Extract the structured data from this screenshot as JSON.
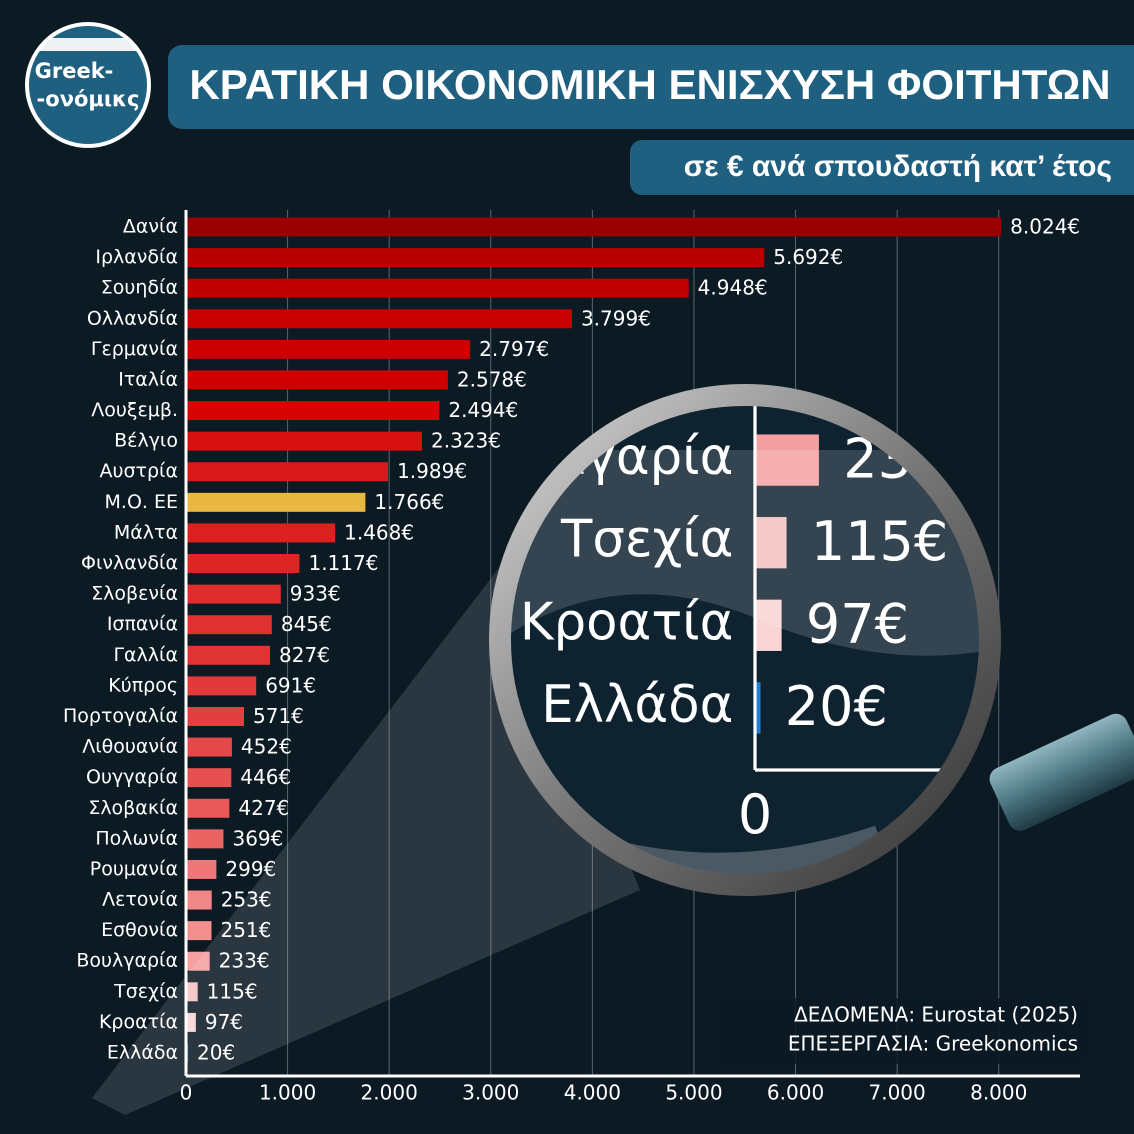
{
  "logo": [
    "Greek-",
    "-ονόμικς"
  ],
  "source": "ΔΕΔΟΜΕΝΑ: Eurostat (2025)",
  "credit": "ΕΠΕΞΕΡΓΑΣΙΑ: Greekonomics",
  "chart_data": {
    "type": "barh",
    "title": "ΚΡΑΤΙΚΗ ΟΙΚΟΝΟΜΙΚΗ ΕΝΙΣΧΥΣΗ ΦΟΙΤΗΤΩΝ",
    "subtitle": "σε € ανά σπουδαστή κατ’ έτος",
    "categories": [
      "Δανία",
      "Ιρλανδία",
      "Σουηδία",
      "Ολλανδία",
      "Γερμανία",
      "Ιταλία",
      "Λουξεμβ.",
      "Βέλγιο",
      "Αυστρία",
      "Μ.Ο. ΕΕ",
      "Μάλτα",
      "Φινλανδία",
      "Σλοβενία",
      "Ισπανία",
      "Γαλλία",
      "Κύπρος",
      "Πορτογαλία",
      "Λιθουανία",
      "Ουγγαρία",
      "Σλοβακία",
      "Πολωνία",
      "Ρουμανία",
      "Λετονία",
      "Εσθονία",
      "Βουλγαρία",
      "Τσεχία",
      "Κροατία",
      "Ελλάδα"
    ],
    "values": [
      8024,
      5692,
      4948,
      3799,
      2797,
      2578,
      2494,
      2323,
      1989,
      1766,
      1468,
      1117,
      933,
      845,
      827,
      691,
      571,
      452,
      446,
      427,
      369,
      299,
      253,
      251,
      233,
      115,
      97,
      20
    ],
    "value_labels": [
      "8.024€",
      "5.692€",
      "4.948€",
      "3.799€",
      "2.797€",
      "2.578€",
      "2.494€",
      "2.323€",
      "1.989€",
      "1.766€",
      "1.468€",
      "1.117€",
      "933€",
      "845€",
      "827€",
      "691€",
      "571€",
      "452€",
      "446€",
      "427€",
      "369€",
      "299€",
      "253€",
      "251€",
      "233€",
      "115€",
      "97€",
      "20€"
    ],
    "colors": [
      "#9b0000",
      "#b80000",
      "#c00000",
      "#c80000",
      "#cc0000",
      "#d00000",
      "#d60404",
      "#d81010",
      "#da1a1a",
      "#e8b840",
      "#dc2020",
      "#dc2626",
      "#e02c2c",
      "#e03030",
      "#e03434",
      "#e23a3a",
      "#e24040",
      "#e44848",
      "#e65050",
      "#e85858",
      "#ea6464",
      "#ee7878",
      "#f08888",
      "#f29090",
      "#f4a0a0",
      "#f6c0c0",
      "#f8d4d4",
      "#1e7fd8"
    ],
    "xlim": [
      0,
      8800
    ],
    "xticks": [
      0,
      {
        "value": 1000,
        "label": "1.000"
      },
      {
        "value": 2000,
        "label": "2.000"
      },
      {
        "value": 3000,
        "label": "3.000"
      },
      {
        "value": 4000,
        "label": "4.000"
      },
      {
        "value": 5000,
        "label": "5.000"
      },
      {
        "value": 6000,
        "label": "6.000"
      },
      {
        "value": 7000,
        "label": "7.000"
      },
      {
        "value": 8000,
        "label": "8.000"
      }
    ],
    "grid": true
  }
}
